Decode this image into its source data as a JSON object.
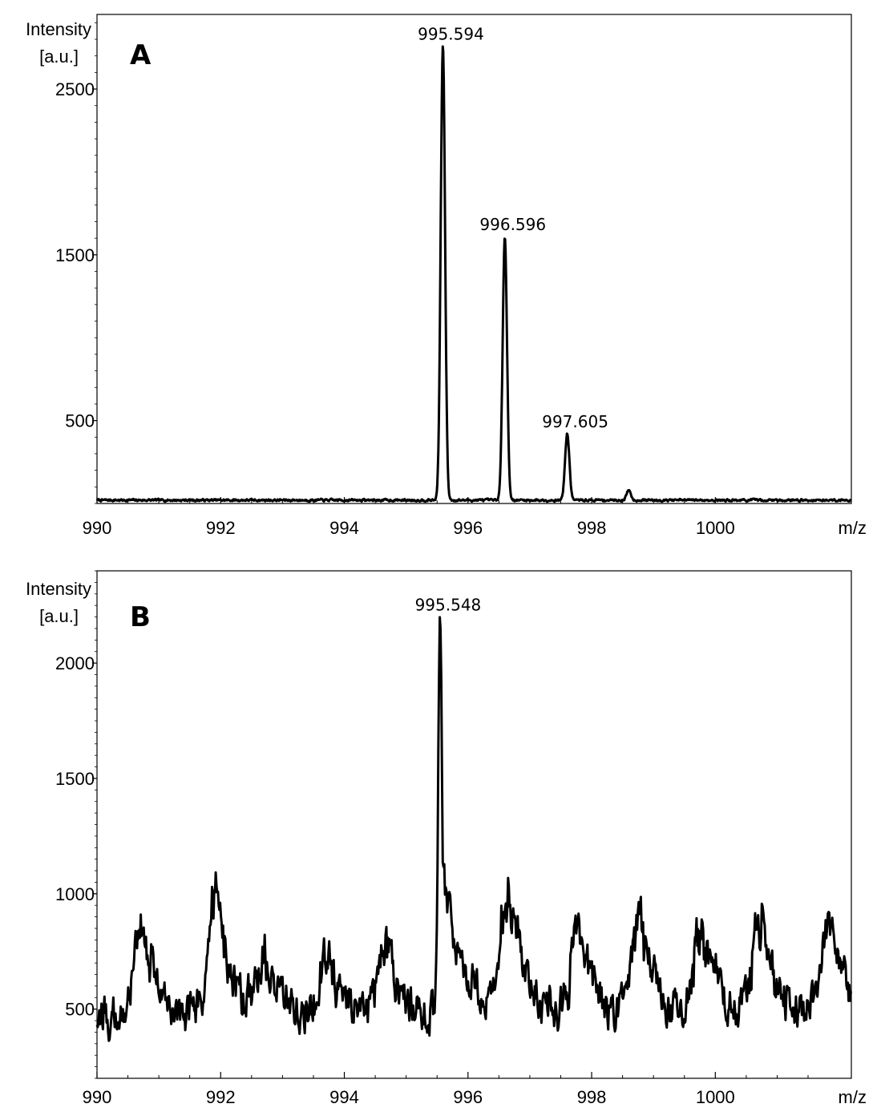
{
  "chart_data": [
    {
      "type": "line",
      "panel_label": "A",
      "ylabel": [
        "Intensity",
        "[a.u.]"
      ],
      "xlabel": "m/z",
      "x_ticks": [
        990,
        992,
        994,
        996,
        998,
        1000
      ],
      "x_tick_labels": [
        "990",
        "992",
        "994",
        "996",
        "998",
        "1000"
      ],
      "y_ticks": [
        500,
        1500,
        2500
      ],
      "y_tick_labels": [
        "500",
        "1500",
        "2500"
      ],
      "xlim": [
        990,
        1002.2
      ],
      "ylim": [
        0,
        2950
      ],
      "grid": false,
      "baseline": 20,
      "noise_amplitude": 12,
      "peaks": [
        {
          "x": 995.594,
          "y": 2760,
          "label": "995.594"
        },
        {
          "x": 996.596,
          "y": 1610,
          "label": "996.596"
        },
        {
          "x": 997.605,
          "y": 420,
          "label": "997.605"
        },
        {
          "x": 998.6,
          "y": 80,
          "label": ""
        }
      ]
    },
    {
      "type": "line",
      "panel_label": "B",
      "ylabel": [
        "Intensity",
        "[a.u.]"
      ],
      "xlabel": "m/z",
      "x_ticks": [
        990,
        992,
        994,
        996,
        998,
        1000
      ],
      "x_tick_labels": [
        "990",
        "992",
        "994",
        "996",
        "998",
        "1000"
      ],
      "y_ticks": [
        500,
        1000,
        1500,
        2000
      ],
      "y_tick_labels": [
        "500",
        "1000",
        "1500",
        "2000"
      ],
      "xlim": [
        990,
        1002.2
      ],
      "ylim": [
        200,
        2400
      ],
      "grid": false,
      "baseline": 470,
      "noise_amplitude": 90,
      "peaks": [
        {
          "x": 995.548,
          "y": 2200,
          "label": "995.548"
        },
        {
          "x": 990.75,
          "y": 930,
          "label": ""
        },
        {
          "x": 991.95,
          "y": 1060,
          "label": ""
        },
        {
          "x": 992.75,
          "y": 760,
          "label": ""
        },
        {
          "x": 993.75,
          "y": 780,
          "label": ""
        },
        {
          "x": 994.7,
          "y": 800,
          "label": ""
        },
        {
          "x": 996.65,
          "y": 1100,
          "label": ""
        },
        {
          "x": 997.8,
          "y": 900,
          "label": ""
        },
        {
          "x": 998.8,
          "y": 940,
          "label": ""
        },
        {
          "x": 999.8,
          "y": 930,
          "label": ""
        },
        {
          "x": 1000.75,
          "y": 960,
          "label": ""
        },
        {
          "x": 1001.85,
          "y": 980,
          "label": ""
        }
      ]
    }
  ]
}
